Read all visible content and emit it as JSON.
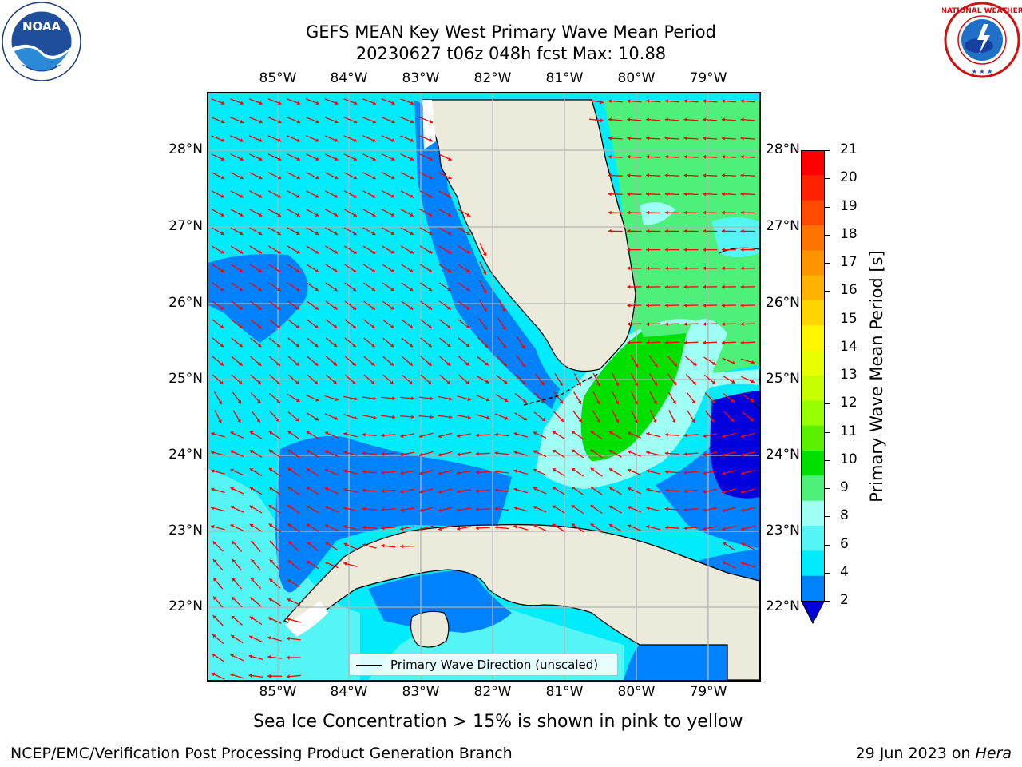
{
  "header": {
    "title_line1": "GEFS MEAN Key West Primary Wave Mean Period",
    "title_line2": "20230627 t06z 048h fcst   Max: 10.88"
  },
  "logos": {
    "left": "NOAA",
    "right": "NATIONAL WEATHER SERVICE"
  },
  "axes": {
    "lon_ticks": [
      "85°W",
      "84°W",
      "83°W",
      "82°W",
      "81°W",
      "80°W",
      "79°W"
    ],
    "lat_ticks": [
      "28°N",
      "27°N",
      "26°N",
      "25°N",
      "24°N",
      "23°N",
      "22°N"
    ]
  },
  "map": {
    "lon_range": [
      -86.0,
      -78.3
    ],
    "lat_range": [
      21.0,
      28.75
    ],
    "gridlines": true
  },
  "colorbar": {
    "label": "Primary Wave Mean Period [s]",
    "ticks": [
      "21",
      "20",
      "19",
      "18",
      "17",
      "16",
      "15",
      "14",
      "13",
      "12",
      "11",
      "10",
      "9",
      "8",
      "6",
      "4",
      "2"
    ],
    "colors": [
      "#ff0000",
      "#ff2200",
      "#ff4a00",
      "#ff7300",
      "#ff9400",
      "#ffb300",
      "#ffd500",
      "#fff700",
      "#e8ff00",
      "#c8ff00",
      "#98ff00",
      "#5af000",
      "#00e000",
      "#4cf07a",
      "#9ffff5",
      "#56f5f5",
      "#00ecfc",
      "#0082ff",
      "#0000dd"
    ]
  },
  "legend": {
    "label": "Primary Wave Direction (unscaled)"
  },
  "footer": {
    "caption": "Sea Ice Concentration > 15% is shown in pink to yellow",
    "left": "NCEP/EMC/Verification Post Processing Product Generation Branch",
    "date": "29 Jun 2023 on ",
    "machine": "Hera"
  }
}
